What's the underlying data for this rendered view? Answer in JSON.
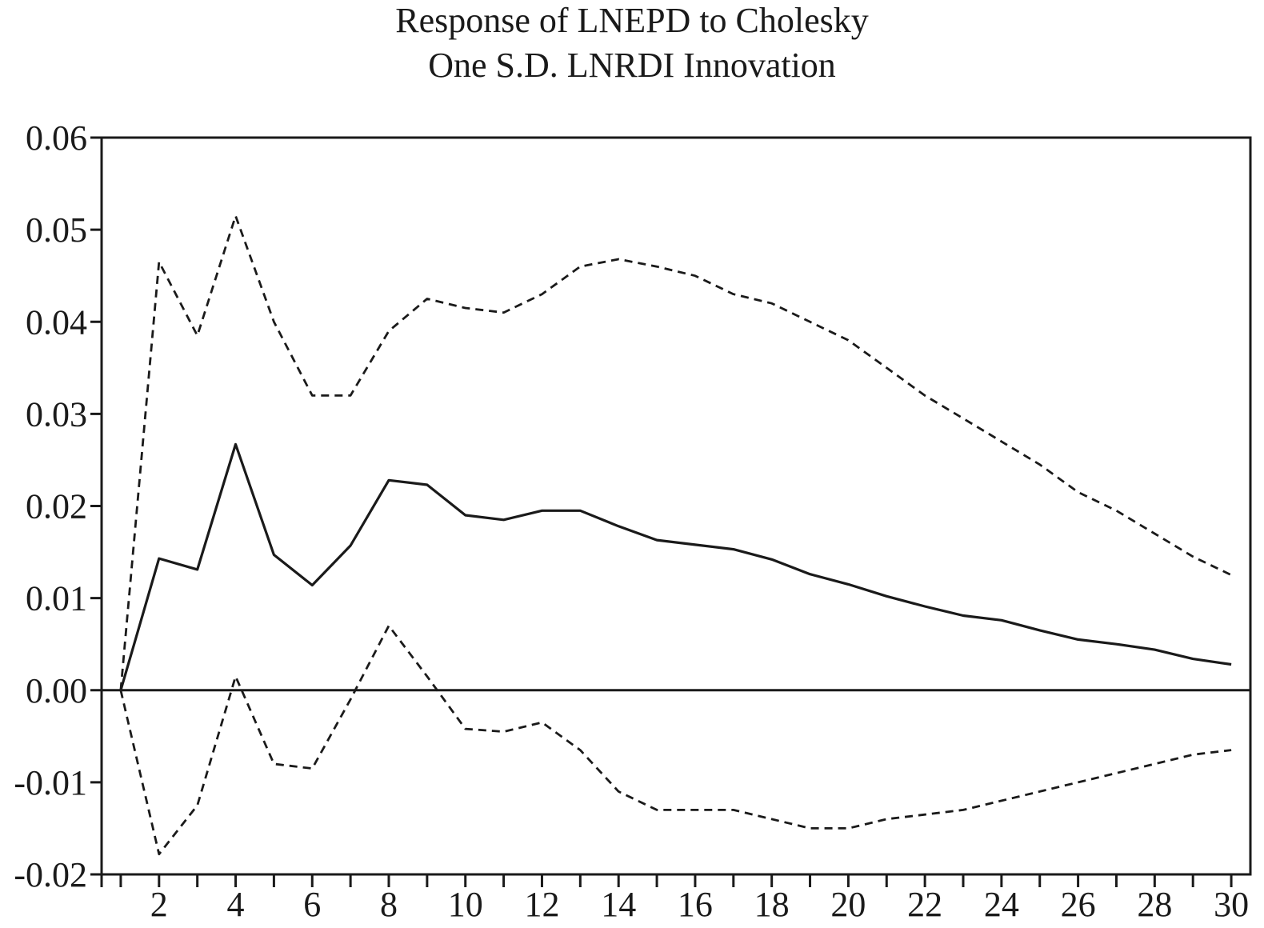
{
  "chart_data": {
    "type": "line",
    "title": "Response of LNEPD to Cholesky",
    "subtitle": "One S.D. LNRDI Innovation",
    "xlabel": "",
    "ylabel": "",
    "xlim": [
      0.5,
      30.5
    ],
    "ylim": [
      -0.02,
      0.06
    ],
    "grid": false,
    "legend": "none",
    "x_ticks": [
      1,
      2,
      3,
      4,
      5,
      6,
      7,
      8,
      9,
      10,
      11,
      12,
      13,
      14,
      15,
      16,
      17,
      18,
      19,
      20,
      21,
      22,
      23,
      24,
      25,
      26,
      27,
      28,
      29,
      30
    ],
    "x_tick_labels": [
      {
        "x": 2,
        "label": "2"
      },
      {
        "x": 4,
        "label": "4"
      },
      {
        "x": 6,
        "label": "6"
      },
      {
        "x": 8,
        "label": "8"
      },
      {
        "x": 10,
        "label": "10"
      },
      {
        "x": 12,
        "label": "12"
      },
      {
        "x": 14,
        "label": "14"
      },
      {
        "x": 16,
        "label": "16"
      },
      {
        "x": 18,
        "label": "18"
      },
      {
        "x": 20,
        "label": "20"
      },
      {
        "x": 22,
        "label": "22"
      },
      {
        "x": 24,
        "label": "24"
      },
      {
        "x": 26,
        "label": "26"
      },
      {
        "x": 28,
        "label": "28"
      },
      {
        "x": 30,
        "label": "30"
      }
    ],
    "y_ticks": [
      {
        "y": 0.06,
        "label": "0.06"
      },
      {
        "y": 0.05,
        "label": "0.05"
      },
      {
        "y": 0.04,
        "label": "0.04"
      },
      {
        "y": 0.03,
        "label": "0.03"
      },
      {
        "y": 0.02,
        "label": "0.02"
      },
      {
        "y": 0.01,
        "label": "0.01"
      },
      {
        "y": 0.0,
        "label": "0.00"
      },
      {
        "y": -0.01,
        "label": "-0.01"
      },
      {
        "y": -0.02,
        "label": "-0.02"
      }
    ],
    "zero_line": true,
    "x": [
      1,
      2,
      3,
      4,
      5,
      6,
      7,
      8,
      9,
      10,
      11,
      12,
      13,
      14,
      15,
      16,
      17,
      18,
      19,
      20,
      21,
      22,
      23,
      24,
      25,
      26,
      27,
      28,
      29,
      30
    ],
    "series": [
      {
        "style": "solid",
        "values": [
          0.0,
          0.0143,
          0.0131,
          0.0267,
          0.0147,
          0.0114,
          0.0157,
          0.0228,
          0.0223,
          0.019,
          0.0185,
          0.0195,
          0.0195,
          0.0178,
          0.0163,
          0.0158,
          0.0153,
          0.0142,
          0.0126,
          0.0115,
          0.0102,
          0.0091,
          0.0081,
          0.0076,
          0.0065,
          0.0055,
          0.005,
          0.0044,
          0.0034,
          0.0028
        ]
      },
      {
        "style": "dashed",
        "values": [
          0.0,
          0.0465,
          0.0385,
          0.0515,
          0.04,
          0.032,
          0.032,
          0.039,
          0.0425,
          0.0415,
          0.041,
          0.043,
          0.046,
          0.0468,
          0.046,
          0.045,
          0.043,
          0.042,
          0.04,
          0.038,
          0.035,
          0.032,
          0.0295,
          0.027,
          0.0245,
          0.0215,
          0.0195,
          0.017,
          0.0145,
          0.0125
        ]
      },
      {
        "style": "dashed",
        "values": [
          0.0,
          -0.0178,
          -0.0125,
          0.0015,
          -0.008,
          -0.0085,
          -0.001,
          0.007,
          0.0015,
          -0.0042,
          -0.0045,
          -0.0035,
          -0.0065,
          -0.011,
          -0.013,
          -0.013,
          -0.013,
          -0.014,
          -0.015,
          -0.015,
          -0.014,
          -0.0135,
          -0.013,
          -0.012,
          -0.011,
          -0.01,
          -0.009,
          -0.008,
          -0.007,
          -0.0065
        ]
      }
    ],
    "colors": {
      "line": "#1a1a1a",
      "background": "#ffffff"
    }
  }
}
